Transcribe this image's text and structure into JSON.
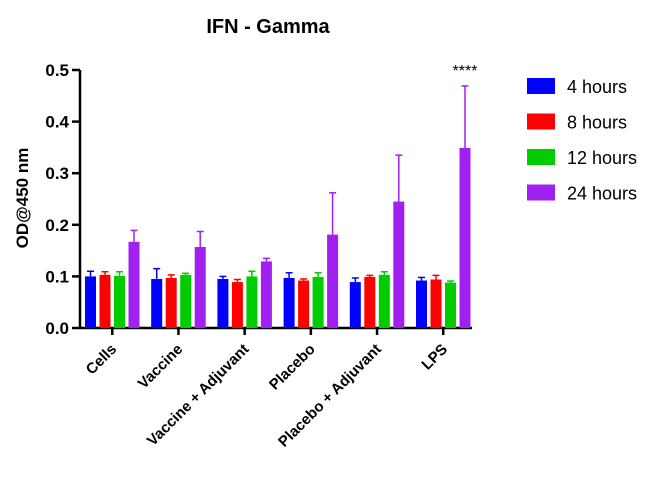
{
  "chart_data": {
    "type": "bar",
    "title": "IFN - Gamma",
    "ylabel": "OD@450 nm",
    "xlabel": "",
    "ylim": [
      0,
      0.5
    ],
    "yticks": [
      "0.0",
      "0.1",
      "0.2",
      "0.3",
      "0.4",
      "0.5"
    ],
    "ytick_values": [
      0,
      0.1,
      0.2,
      0.3,
      0.4,
      0.5
    ],
    "categories": [
      "Cells",
      "Vaccine",
      "Vaccine + Adjuvant",
      "Placebo",
      "Placebo + Adjuvant",
      "LPS"
    ],
    "series": [
      {
        "name": "4 hours",
        "color": "#0000ff",
        "values": [
          0.1,
          0.095,
          0.095,
          0.097,
          0.089,
          0.092
        ],
        "errors": [
          0.01,
          0.02,
          0.005,
          0.01,
          0.008,
          0.006
        ]
      },
      {
        "name": "8 hours",
        "color": "#ff0000",
        "values": [
          0.103,
          0.097,
          0.089,
          0.092,
          0.099,
          0.094
        ],
        "errors": [
          0.006,
          0.006,
          0.005,
          0.003,
          0.003,
          0.008
        ]
      },
      {
        "name": "12 hours",
        "color": "#00cc00",
        "values": [
          0.101,
          0.103,
          0.1,
          0.099,
          0.103,
          0.088
        ],
        "errors": [
          0.008,
          0.003,
          0.01,
          0.008,
          0.006,
          0.003
        ]
      },
      {
        "name": "24 hours",
        "color": "#a020f0",
        "values": [
          0.167,
          0.157,
          0.129,
          0.181,
          0.245,
          0.349
        ],
        "errors": [
          0.022,
          0.03,
          0.006,
          0.081,
          0.09,
          0.12
        ]
      }
    ],
    "annotations": [
      {
        "category": "LPS",
        "series": "24 hours",
        "text": "****"
      }
    ],
    "legend": {
      "position": "right"
    },
    "grid": false
  }
}
